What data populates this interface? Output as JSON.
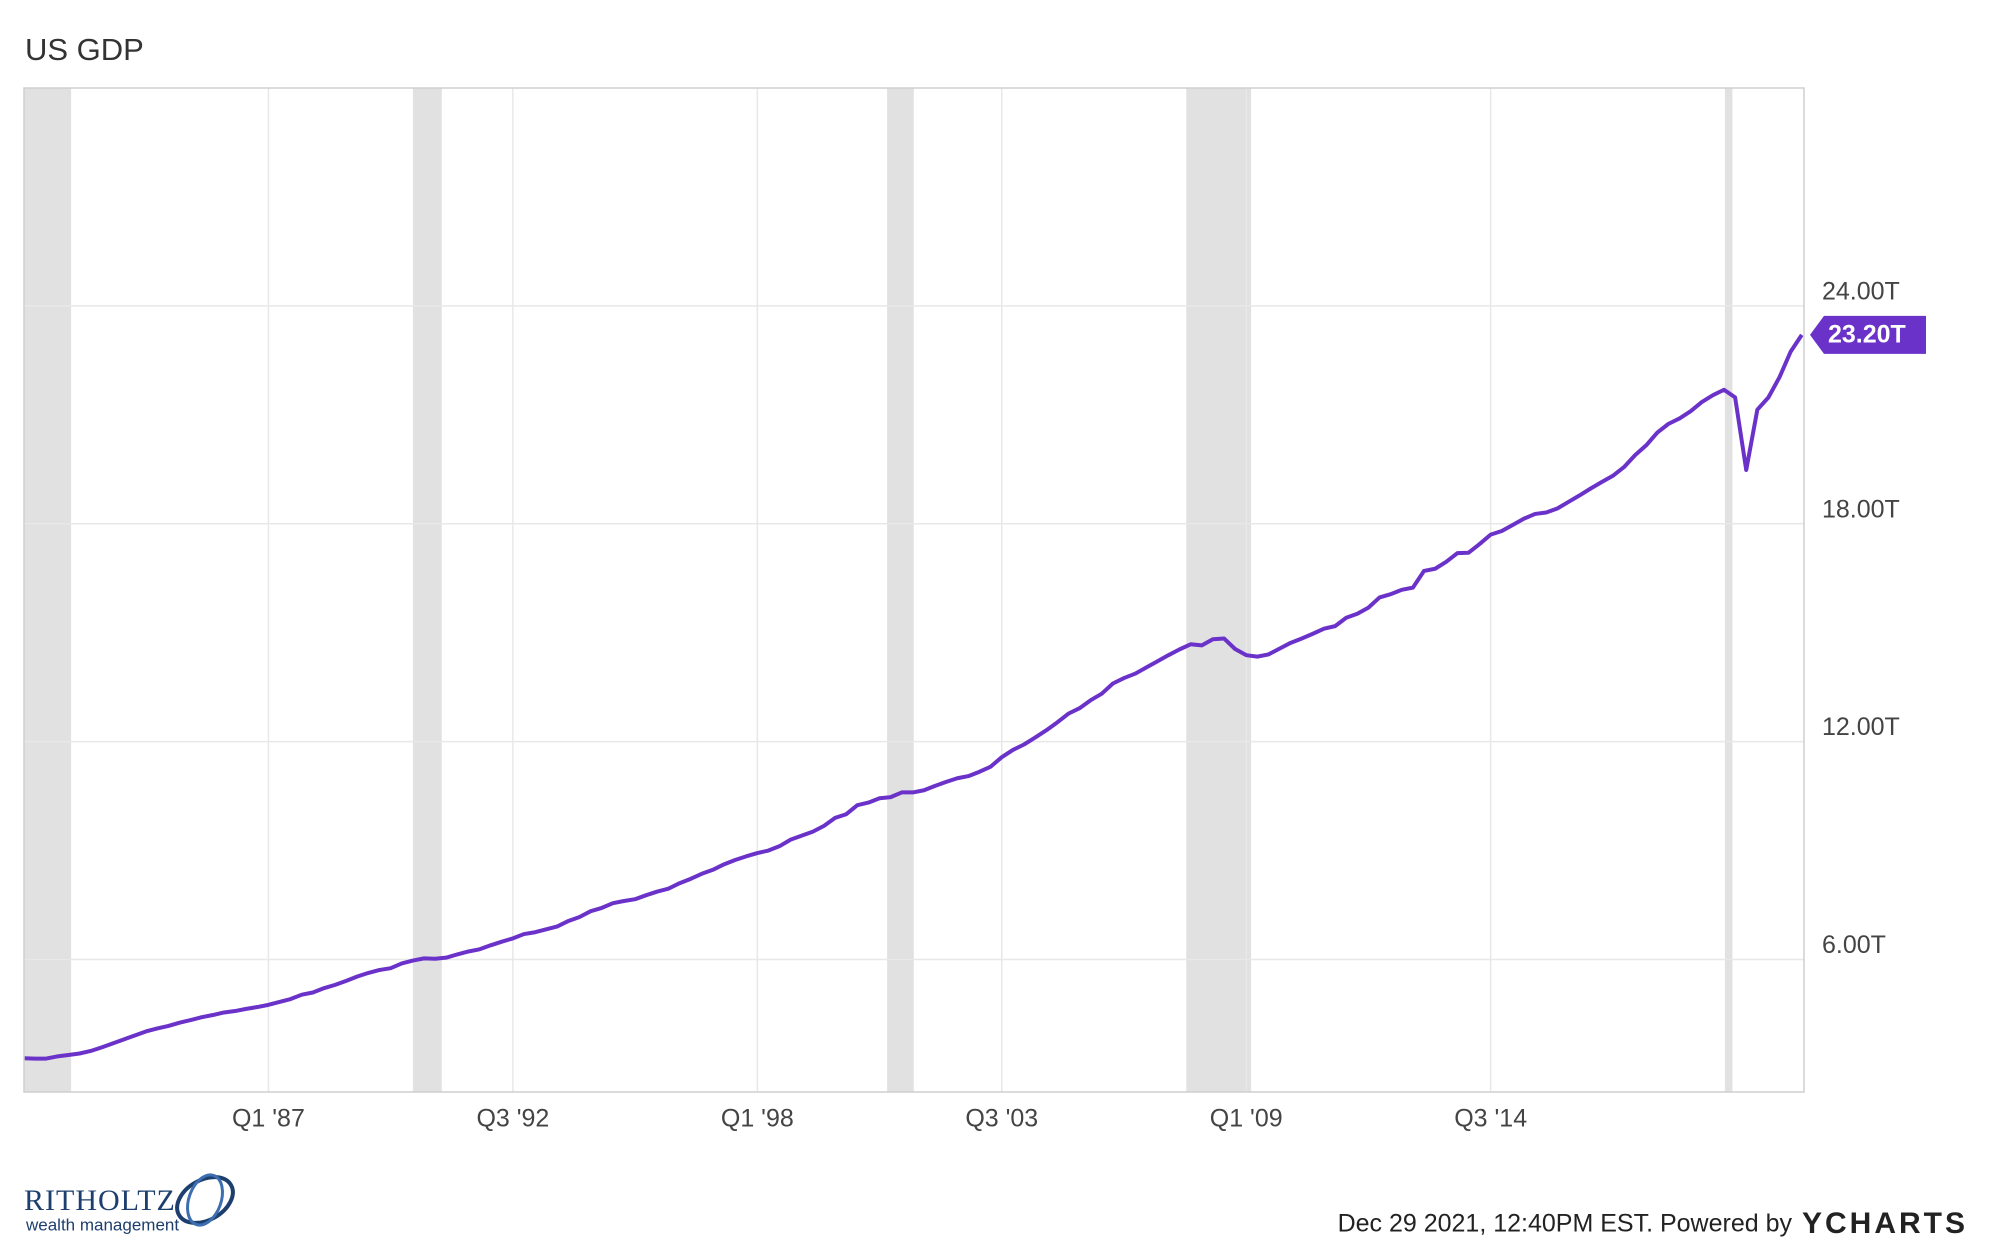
{
  "chart_data": {
    "type": "line",
    "title": "US GDP",
    "color": "#6a32c9",
    "x": [
      1981.5,
      1981.75,
      1982,
      1982.25,
      1982.5,
      1982.75,
      1983,
      1983.25,
      1983.5,
      1983.75,
      1984,
      1984.25,
      1984.5,
      1984.75,
      1985,
      1985.25,
      1985.5,
      1985.75,
      1986,
      1986.25,
      1986.5,
      1986.75,
      1987,
      1987.25,
      1987.5,
      1987.75,
      1988,
      1988.25,
      1988.5,
      1988.75,
      1989,
      1989.25,
      1989.5,
      1989.75,
      1990,
      1990.25,
      1990.5,
      1990.75,
      1991,
      1991.25,
      1991.5,
      1991.75,
      1992,
      1992.25,
      1992.5,
      1992.75,
      1993,
      1993.25,
      1993.5,
      1993.75,
      1994,
      1994.25,
      1994.5,
      1994.75,
      1995,
      1995.25,
      1995.5,
      1995.75,
      1996,
      1996.25,
      1996.5,
      1996.75,
      1997,
      1997.25,
      1997.5,
      1997.75,
      1998,
      1998.25,
      1998.5,
      1998.75,
      1999,
      1999.25,
      1999.5,
      1999.75,
      2000,
      2000.25,
      2000.5,
      2000.75,
      2001,
      2001.25,
      2001.5,
      2001.75,
      2002,
      2002.25,
      2002.5,
      2002.75,
      2003,
      2003.25,
      2003.5,
      2003.75,
      2004,
      2004.25,
      2004.5,
      2004.75,
      2005,
      2005.25,
      2005.5,
      2005.75,
      2006,
      2006.25,
      2006.5,
      2006.75,
      2007,
      2007.25,
      2007.5,
      2007.75,
      2008,
      2008.25,
      2008.5,
      2008.75,
      2009,
      2009.25,
      2009.5,
      2009.75,
      2010,
      2010.25,
      2010.5,
      2010.75,
      2011,
      2011.25,
      2011.5,
      2011.75,
      2012,
      2012.25,
      2012.5,
      2012.75,
      2013,
      2013.25,
      2013.5,
      2013.75,
      2014,
      2014.25,
      2014.5,
      2014.75,
      2015,
      2015.25,
      2015.5,
      2015.75,
      2016,
      2016.25,
      2016.5,
      2016.75,
      2017,
      2017.25,
      2017.5,
      2017.75,
      2018,
      2018.25,
      2018.5,
      2018.75,
      2019,
      2019.25,
      2019.5,
      2019.75,
      2020,
      2020.25,
      2020.5,
      2020.75,
      2021,
      2021.25,
      2021.5
    ],
    "values": [
      3.28,
      3.27,
      3.27,
      3.33,
      3.37,
      3.41,
      3.48,
      3.58,
      3.69,
      3.8,
      3.91,
      4.02,
      4.1,
      4.17,
      4.26,
      4.33,
      4.41,
      4.47,
      4.54,
      4.58,
      4.64,
      4.69,
      4.75,
      4.83,
      4.91,
      5.03,
      5.09,
      5.21,
      5.3,
      5.41,
      5.53,
      5.63,
      5.71,
      5.76,
      5.89,
      5.97,
      6.03,
      6.02,
      6.05,
      6.14,
      6.22,
      6.28,
      6.39,
      6.49,
      6.58,
      6.7,
      6.75,
      6.83,
      6.91,
      7.06,
      7.17,
      7.33,
      7.42,
      7.55,
      7.61,
      7.66,
      7.77,
      7.87,
      7.95,
      8.1,
      8.22,
      8.36,
      8.47,
      8.62,
      8.74,
      8.84,
      8.93,
      9.0,
      9.12,
      9.3,
      9.41,
      9.52,
      9.68,
      9.9,
      10.0,
      10.25,
      10.32,
      10.44,
      10.47,
      10.6,
      10.6,
      10.66,
      10.78,
      10.89,
      10.99,
      11.05,
      11.17,
      11.31,
      11.57,
      11.77,
      11.92,
      12.11,
      12.31,
      12.53,
      12.77,
      12.92,
      13.14,
      13.32,
      13.6,
      13.75,
      13.87,
      14.04,
      14.21,
      14.38,
      14.54,
      14.68,
      14.65,
      14.82,
      14.84,
      14.55,
      14.38,
      14.34,
      14.4,
      14.56,
      14.72,
      14.84,
      14.97,
      15.11,
      15.18,
      15.41,
      15.52,
      15.69,
      15.97,
      16.06,
      16.18,
      16.24,
      16.7,
      16.76,
      16.95,
      17.19,
      17.2,
      17.44,
      17.7,
      17.8,
      17.97,
      18.14,
      18.27,
      18.31,
      18.42,
      18.6,
      18.78,
      18.97,
      19.15,
      19.32,
      19.56,
      19.89,
      20.16,
      20.51,
      20.75,
      20.9,
      21.1,
      21.35,
      21.54,
      21.69,
      21.48,
      19.48,
      21.14,
      21.48,
      22.04,
      22.74,
      23.2
    ],
    "end_label": "23.20T",
    "recessions": [
      [
        1981.5,
        1982.56
      ],
      [
        1990.25,
        1990.9
      ],
      [
        2000.92,
        2001.52
      ],
      [
        2007.65,
        2009.11
      ],
      [
        2019.77,
        2019.94
      ]
    ],
    "xlim": [
      1981.5,
      2021.55
    ],
    "xticks": [
      {
        "value": 1987,
        "label": "Q1 '87"
      },
      {
        "value": 1992.5,
        "label": "Q3 '92"
      },
      {
        "value": 1998,
        "label": "Q1 '98"
      },
      {
        "value": 2003.5,
        "label": "Q3 '03"
      },
      {
        "value": 2009,
        "label": "Q1 '09"
      },
      {
        "value": 2014.5,
        "label": "Q3 '14"
      }
    ],
    "ylim": [
      2.35,
      30
    ],
    "yticks": [
      {
        "value": 6,
        "label": "6.00T"
      },
      {
        "value": 12,
        "label": "12.00T"
      },
      {
        "value": 18,
        "label": "18.00T"
      },
      {
        "value": 24,
        "label": "24.00T"
      }
    ],
    "grid": true
  },
  "footer": {
    "timestamp": "Dec 29 2021, 12:40PM EST. Powered by",
    "brand": "YCHARTS",
    "logo_name": "RITHOLTZ",
    "logo_sub": "wealth management"
  }
}
